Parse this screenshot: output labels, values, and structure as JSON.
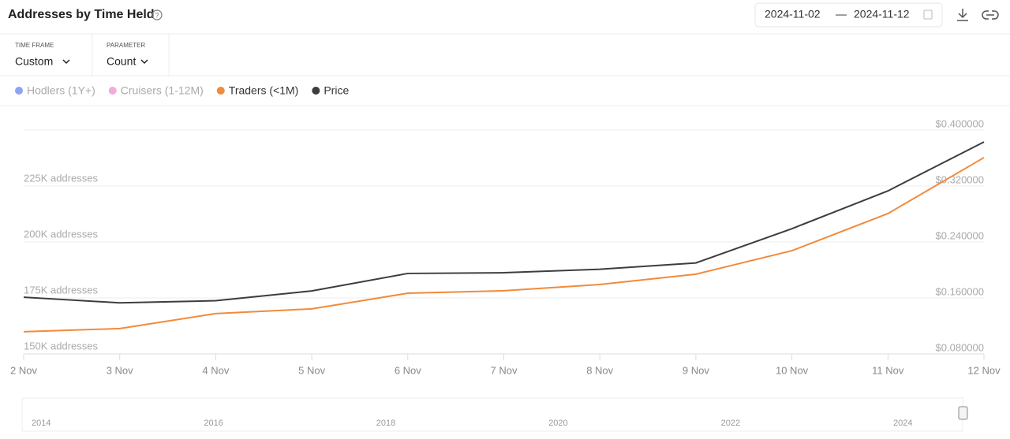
{
  "header": {
    "title": "Addresses by Time Held",
    "date_from": "2024-11-02",
    "date_separator": "—",
    "date_to": "2024-11-12"
  },
  "controls": [
    {
      "label": "TIME FRAME",
      "value": "Custom"
    },
    {
      "label": "PARAMETER",
      "value": "Count"
    }
  ],
  "chart_data": {
    "type": "line",
    "categories": [
      "2 Nov",
      "3 Nov",
      "4 Nov",
      "5 Nov",
      "6 Nov",
      "7 Nov",
      "8 Nov",
      "9 Nov",
      "10 Nov",
      "11 Nov",
      "12 Nov"
    ],
    "series": [
      {
        "name": "Hodlers (1Y+)",
        "color": "#7b93f0",
        "visible": false
      },
      {
        "name": "Cruisers (1-12M)",
        "color": "#f39bd6",
        "visible": false
      },
      {
        "name": "Traders (<1M)",
        "color": "#f28a3a",
        "visible": true,
        "values": [
          159900,
          161300,
          168000,
          170100,
          177100,
          178200,
          181000,
          185600,
          196100,
          212700,
          237700
        ]
      },
      {
        "name": "Price",
        "color": "#3d3d3d",
        "visible": true,
        "axis": "y2",
        "values": [
          0.161,
          0.153,
          0.156,
          0.17,
          0.195,
          0.196,
          0.201,
          0.21,
          0.259,
          0.313,
          0.383
        ]
      }
    ],
    "ylim": [
      150000,
      250000
    ],
    "yticks": [
      {
        "value": 150000,
        "label": "150K addresses"
      },
      {
        "value": 175000,
        "label": "175K addresses"
      },
      {
        "value": 200000,
        "label": "200K addresses"
      },
      {
        "value": 225000,
        "label": "225K addresses"
      }
    ],
    "y2lim": [
      0.08,
      0.4
    ],
    "y2ticks": [
      {
        "value": 0.08,
        "label": "$0.080000"
      },
      {
        "value": 0.16,
        "label": "$0.160000"
      },
      {
        "value": 0.24,
        "label": "$0.240000"
      },
      {
        "value": 0.32,
        "label": "$0.320000"
      },
      {
        "value": 0.4,
        "label": "$0.400000"
      }
    ],
    "grid": true
  },
  "navigator": {
    "labels": [
      "2014",
      "2016",
      "2018",
      "2020",
      "2022",
      "2024"
    ]
  }
}
